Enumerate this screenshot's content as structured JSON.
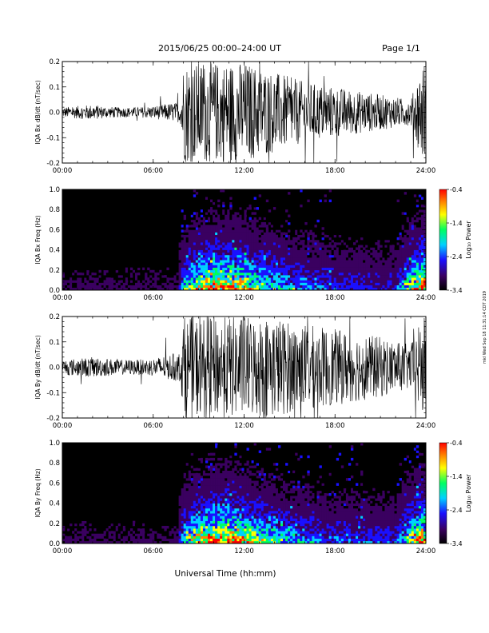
{
  "header": {
    "date_range": "2015/06/25  00:00–24:00 UT",
    "page": "Page 1/1"
  },
  "side_stamp": "mkl Wed Sep 18 11:31:14 CDT 2019",
  "chart_data": [
    {
      "type": "line",
      "ylabel": "IQA Bx dB/dt (nT/sec)",
      "xlim": [
        0,
        24
      ],
      "ylim": [
        -0.2,
        0.2
      ],
      "x_ticks": [
        "00:00",
        "06:00",
        "12:00",
        "18:00",
        "24:00"
      ],
      "y_ticks": [
        "0.2",
        "0.1",
        "0.0",
        "-0.1",
        "-0.2"
      ],
      "grid": false,
      "series": [
        {
          "x": [
            0,
            1,
            2,
            3,
            4,
            5,
            6,
            7,
            7.8,
            8,
            9,
            10,
            11,
            12,
            13,
            14,
            15,
            16,
            17,
            18,
            19,
            20,
            21,
            22,
            23,
            23.8,
            24
          ],
          "amplitude": [
            0.02,
            0.025,
            0.03,
            0.022,
            0.02,
            0.02,
            0.025,
            0.035,
            0.04,
            0.2,
            0.2,
            0.2,
            0.2,
            0.2,
            0.18,
            0.16,
            0.14,
            0.12,
            0.11,
            0.1,
            0.09,
            0.08,
            0.07,
            0.06,
            0.05,
            0.2,
            0.2
          ]
        }
      ]
    },
    {
      "type": "heatmap",
      "ylabel": "IQA Bx Freq (Hz)",
      "xlim": [
        0,
        24
      ],
      "ylim": [
        0.0,
        1.0
      ],
      "x_ticks": [
        "00:00",
        "06:00",
        "12:00",
        "18:00",
        "24:00"
      ],
      "y_ticks": [
        "1.0",
        "0.8",
        "0.6",
        "0.4",
        "0.2",
        "0.0"
      ],
      "colorbar": {
        "label": "Log₁₀ Power",
        "ticks": [
          "-0.4",
          "-1.4",
          "-2.4",
          "-3.4"
        ],
        "range": [
          -3.4,
          -0.4
        ]
      },
      "activity_profile": {
        "x": [
          0,
          2,
          4,
          6,
          7.6,
          8,
          9,
          10,
          11,
          12,
          13,
          14,
          15,
          16,
          18,
          20,
          22,
          23.7,
          24
        ],
        "level": [
          0.1,
          0.1,
          0.1,
          0.1,
          0.1,
          0.45,
          0.75,
          0.85,
          0.85,
          0.75,
          0.6,
          0.5,
          0.4,
          0.35,
          0.3,
          0.28,
          0.25,
          0.9,
          0.9
        ]
      }
    },
    {
      "type": "line",
      "ylabel": "IQA By dB/dt (nT/sec)",
      "xlim": [
        0,
        24
      ],
      "ylim": [
        -0.2,
        0.2
      ],
      "x_ticks": [
        "00:00",
        "06:00",
        "12:00",
        "18:00",
        "24:00"
      ],
      "y_ticks": [
        "0.2",
        "0.1",
        "0.0",
        "-0.1",
        "-0.2"
      ],
      "grid": false,
      "series": [
        {
          "x": [
            0,
            1,
            2,
            3,
            4,
            5,
            6,
            7,
            7.8,
            8,
            9,
            10,
            11,
            12,
            13,
            14,
            15,
            16,
            17,
            18,
            19,
            20,
            21,
            22,
            23,
            23.8,
            24
          ],
          "amplitude": [
            0.03,
            0.035,
            0.04,
            0.035,
            0.03,
            0.03,
            0.035,
            0.05,
            0.06,
            0.2,
            0.2,
            0.2,
            0.2,
            0.2,
            0.2,
            0.2,
            0.18,
            0.17,
            0.16,
            0.15,
            0.14,
            0.13,
            0.12,
            0.1,
            0.09,
            0.2,
            0.2
          ]
        }
      ]
    },
    {
      "type": "heatmap",
      "ylabel": "IQA By Freq (Hz)",
      "xlim": [
        0,
        24
      ],
      "ylim": [
        0.0,
        1.0
      ],
      "x_ticks": [
        "00:00",
        "06:00",
        "12:00",
        "18:00",
        "24:00"
      ],
      "y_ticks": [
        "1.0",
        "0.8",
        "0.6",
        "0.4",
        "0.2",
        "0.0"
      ],
      "colorbar": {
        "label": "Log₁₀ Power",
        "ticks": [
          "-0.4",
          "-1.4",
          "-2.4",
          "-3.4"
        ],
        "range": [
          -3.4,
          -0.4
        ]
      },
      "activity_profile": {
        "x": [
          0,
          2,
          4,
          6,
          7.6,
          8,
          9,
          10,
          11,
          12,
          13,
          14,
          15,
          16,
          18,
          20,
          22,
          23.7,
          24
        ],
        "level": [
          0.1,
          0.1,
          0.1,
          0.1,
          0.1,
          0.5,
          0.8,
          0.9,
          0.9,
          0.8,
          0.65,
          0.55,
          0.45,
          0.4,
          0.32,
          0.3,
          0.28,
          0.9,
          0.9
        ]
      }
    }
  ],
  "xlabel": "Universal Time (hh:mm)",
  "colors": {
    "trace": "#000000",
    "background": "#000000",
    "colormap": [
      "#000000",
      "#3a0060",
      "#1a10ff",
      "#00d0ff",
      "#00ff60",
      "#ffff00",
      "#ff8000",
      "#ff0000"
    ]
  }
}
